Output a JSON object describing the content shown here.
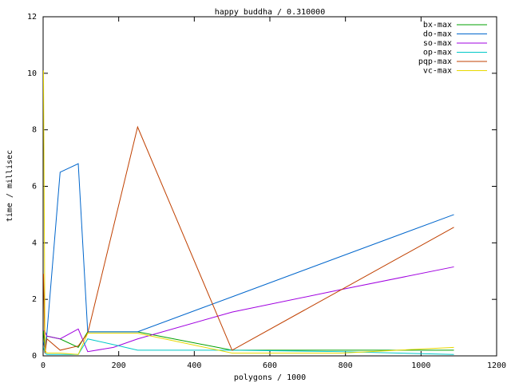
{
  "chart_data": {
    "type": "line",
    "title": "happy buddha / 0.310000",
    "x_label": "polygons / 1000",
    "y_label": "time / millisec",
    "x": [
      1,
      5,
      10,
      45,
      93,
      118,
      186,
      250,
      500,
      790,
      1087
    ],
    "series": [
      {
        "name": "bx-max",
        "color": "#00a000",
        "values": [
          0.9,
          0.1,
          0.7,
          0.6,
          0.3,
          0.85,
          0.85,
          0.85,
          0.2,
          0.2,
          0.2
        ]
      },
      {
        "name": "do-max",
        "color": "#0066cc",
        "values": [
          0.5,
          0.2,
          0.8,
          6.5,
          6.8,
          0.85,
          0.85,
          0.85,
          2.09,
          3.53,
          5.0
        ]
      },
      {
        "name": "so-max",
        "color": "#a000e0",
        "values": [
          0.9,
          0.85,
          0.7,
          0.6,
          0.95,
          0.15,
          0.3,
          0.6,
          1.55,
          2.35,
          3.15
        ]
      },
      {
        "name": "op-max",
        "color": "#00c8c8",
        "values": [
          0.3,
          0.1,
          0.05,
          0.05,
          0.05,
          0.6,
          0.4,
          0.2,
          0.2,
          0.15,
          0.05
        ]
      },
      {
        "name": "pqp-max",
        "color": "#c04000",
        "values": [
          2.9,
          0.1,
          0.6,
          0.2,
          0.35,
          0.8,
          4.56,
          8.1,
          0.2,
          2.35,
          4.55
        ]
      },
      {
        "name": "vc-max",
        "color": "#e8d800",
        "values": [
          10.1,
          0.2,
          0.1,
          0.1,
          0.05,
          0.8,
          0.8,
          0.8,
          0.1,
          0.1,
          0.3
        ]
      }
    ],
    "xlim": [
      0,
      1200
    ],
    "xticks": [
      0,
      200,
      400,
      600,
      800,
      1000,
      1200
    ],
    "ylim": [
      0,
      12
    ],
    "yticks": [
      0,
      2,
      4,
      6,
      8,
      10,
      12
    ],
    "legend": "top-right"
  }
}
